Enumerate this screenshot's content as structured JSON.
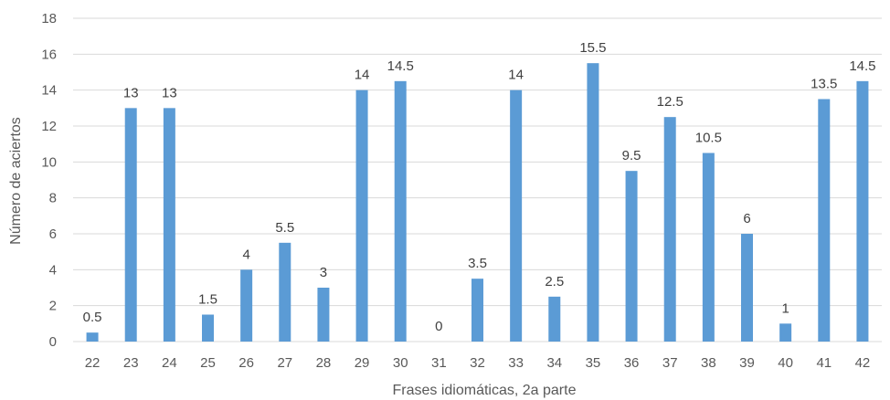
{
  "chart_data": {
    "type": "bar",
    "title": "",
    "xlabel": "Frases idiomáticas, 2a parte",
    "ylabel": "Número de aciertos",
    "ylim": [
      0,
      18
    ],
    "yticks": [
      0,
      2,
      4,
      6,
      8,
      10,
      12,
      14,
      16,
      18
    ],
    "grid": true,
    "legend": "none",
    "bar_color": "#5b9bd5",
    "categories": [
      "22",
      "23",
      "24",
      "25",
      "26",
      "27",
      "28",
      "29",
      "30",
      "31",
      "32",
      "33",
      "34",
      "35",
      "36",
      "37",
      "38",
      "39",
      "40",
      "41",
      "42"
    ],
    "values": [
      0.5,
      13,
      13,
      1.5,
      4,
      5.5,
      3,
      14,
      14.5,
      0,
      3.5,
      14,
      2.5,
      15.5,
      9.5,
      12.5,
      10.5,
      6,
      1,
      13.5,
      14.5
    ],
    "data_labels": [
      "0.5",
      "13",
      "13",
      "1.5",
      "4",
      "5.5",
      "3",
      "14",
      "14.5",
      "0",
      "3.5",
      "14",
      "2.5",
      "15.5",
      "9.5",
      "12.5",
      "10.5",
      "6",
      "1",
      "13.5",
      "14.5"
    ]
  }
}
